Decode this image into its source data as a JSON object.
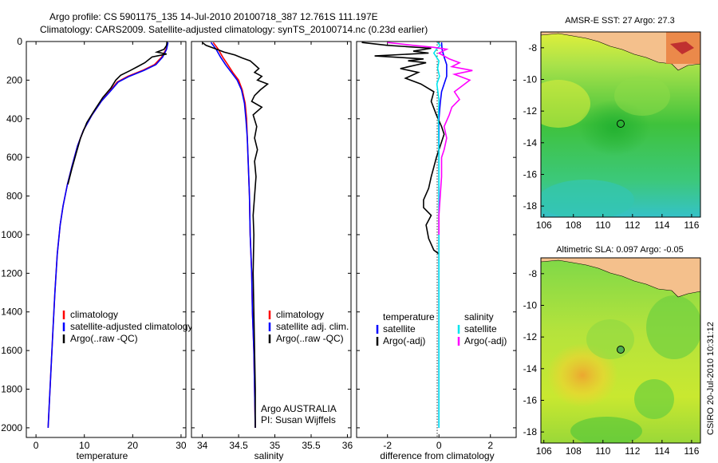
{
  "header": {
    "line1": "Argo profile: CS 5901175_135 14-Jul-2010 20100718_387 12.761S 111.197E",
    "line2": "Climatology: CARS2009. Satellite-adjusted climatology: synTS_20100714.nc (0.23d earlier)"
  },
  "footer": {
    "stamp": "CSIRO 20-Jul-2010 10:31:12"
  },
  "colors": {
    "climatology": "#ff0000",
    "satellite": "#0000ff",
    "argo": "#000000",
    "salinity_satellite": "#00e5ee",
    "salinity_argo": "#ff00ff",
    "land": "#f4c08c"
  },
  "chart_data": [
    {
      "type": "line",
      "name": "temperature-profile",
      "xlabel": "temperature",
      "ylabel": "",
      "xlim": [
        -2,
        31
      ],
      "ylim": [
        2050,
        0
      ],
      "xticks": [
        0,
        10,
        20,
        30
      ],
      "yticks": [
        0,
        200,
        400,
        600,
        800,
        1000,
        1200,
        1400,
        1600,
        1800,
        2000
      ],
      "legend": {
        "position": "lower-right",
        "entries": [
          "climatology",
          "satellite-adjusted climatology",
          "Argo(..raw -QC)"
        ]
      },
      "series": [
        {
          "name": "climatology",
          "color": "#ff0000",
          "points": [
            [
              27.2,
              5
            ],
            [
              26.9,
              40
            ],
            [
              26.0,
              80
            ],
            [
              24.5,
              120
            ],
            [
              22.0,
              150
            ],
            [
              19.0,
              180
            ],
            [
              16.8,
              210
            ],
            [
              15.2,
              260
            ],
            [
              13.5,
              310
            ],
            [
              11.6,
              380
            ],
            [
              9.8,
              460
            ],
            [
              8.6,
              540
            ],
            [
              7.5,
              640
            ],
            [
              6.5,
              740
            ],
            [
              5.6,
              850
            ],
            [
              5.0,
              950
            ],
            [
              4.4,
              1100
            ],
            [
              3.9,
              1300
            ],
            [
              3.5,
              1500
            ],
            [
              3.1,
              1700
            ],
            [
              2.7,
              1900
            ],
            [
              2.5,
              2000
            ]
          ]
        },
        {
          "name": "satellite-adjusted climatology",
          "color": "#0000ff",
          "points": [
            [
              27.3,
              5
            ],
            [
              27.0,
              40
            ],
            [
              26.2,
              80
            ],
            [
              24.8,
              120
            ],
            [
              22.3,
              150
            ],
            [
              19.3,
              180
            ],
            [
              17.0,
              210
            ],
            [
              15.3,
              260
            ],
            [
              13.5,
              310
            ],
            [
              11.6,
              380
            ],
            [
              9.8,
              460
            ],
            [
              8.6,
              540
            ],
            [
              7.5,
              640
            ],
            [
              6.5,
              740
            ],
            [
              5.6,
              850
            ],
            [
              5.0,
              950
            ],
            [
              4.4,
              1100
            ],
            [
              3.9,
              1300
            ],
            [
              3.5,
              1500
            ],
            [
              3.1,
              1700
            ],
            [
              2.7,
              1900
            ],
            [
              2.5,
              2000
            ]
          ]
        },
        {
          "name": "Argo(..raw -QC)",
          "color": "#000000",
          "points": [
            [
              27.1,
              0
            ],
            [
              27.0,
              20
            ],
            [
              26.5,
              40
            ],
            [
              25.0,
              55
            ],
            [
              27.0,
              65
            ],
            [
              24.0,
              80
            ],
            [
              22.5,
              110
            ],
            [
              21.0,
              130
            ],
            [
              19.5,
              150
            ],
            [
              17.5,
              175
            ],
            [
              16.5,
              200
            ],
            [
              15.5,
              240
            ],
            [
              13.8,
              290
            ],
            [
              12.0,
              360
            ],
            [
              10.5,
              420
            ],
            [
              9.2,
              500
            ],
            [
              8.3,
              580
            ],
            [
              7.4,
              660
            ],
            [
              6.6,
              740
            ]
          ]
        }
      ]
    },
    {
      "type": "line",
      "name": "salinity-profile",
      "xlabel": "salinity",
      "ylabel": "",
      "xlim": [
        33.85,
        36.05
      ],
      "ylim": [
        2050,
        0
      ],
      "xticks": [
        34,
        34.5,
        35,
        35.5,
        36
      ],
      "xtick_labels": [
        "34",
        "34.5",
        "35",
        "35.5",
        "36"
      ],
      "legend": {
        "position": "lower-right",
        "entries": [
          "climatology",
          "satellite adj. clim.",
          "Argo(..raw -QC)"
        ]
      },
      "annotations": [
        "Argo AUSTRALIA",
        "PI: Susan Wijffels"
      ],
      "series": [
        {
          "name": "climatology",
          "color": "#ff0000",
          "points": [
            [
              34.15,
              5
            ],
            [
              34.22,
              40
            ],
            [
              34.28,
              80
            ],
            [
              34.35,
              120
            ],
            [
              34.42,
              160
            ],
            [
              34.5,
              200
            ],
            [
              34.55,
              250
            ],
            [
              34.59,
              320
            ],
            [
              34.61,
              400
            ],
            [
              34.62,
              500
            ],
            [
              34.63,
              600
            ],
            [
              34.64,
              700
            ],
            [
              34.65,
              800
            ],
            [
              34.66,
              1000
            ],
            [
              34.68,
              1200
            ],
            [
              34.69,
              1400
            ],
            [
              34.71,
              1600
            ],
            [
              34.72,
              1800
            ],
            [
              34.73,
              2000
            ]
          ]
        },
        {
          "name": "satellite adj. clim.",
          "color": "#0000ff",
          "points": [
            [
              34.12,
              5
            ],
            [
              34.19,
              40
            ],
            [
              34.25,
              80
            ],
            [
              34.32,
              120
            ],
            [
              34.4,
              160
            ],
            [
              34.48,
              200
            ],
            [
              34.54,
              250
            ],
            [
              34.58,
              320
            ],
            [
              34.6,
              400
            ],
            [
              34.62,
              500
            ],
            [
              34.63,
              600
            ],
            [
              34.64,
              700
            ],
            [
              34.65,
              800
            ],
            [
              34.66,
              1000
            ],
            [
              34.68,
              1200
            ],
            [
              34.69,
              1400
            ],
            [
              34.71,
              1600
            ],
            [
              34.72,
              1800
            ],
            [
              34.73,
              2000
            ]
          ]
        },
        {
          "name": "Argo(..raw -QC)",
          "color": "#000000",
          "points": [
            [
              34.0,
              5
            ],
            [
              34.05,
              20
            ],
            [
              34.2,
              40
            ],
            [
              34.3,
              55
            ],
            [
              34.45,
              70
            ],
            [
              34.55,
              85
            ],
            [
              34.66,
              100
            ],
            [
              34.72,
              120
            ],
            [
              34.78,
              140
            ],
            [
              34.72,
              160
            ],
            [
              34.82,
              180
            ],
            [
              34.76,
              200
            ],
            [
              34.9,
              220
            ],
            [
              34.8,
              250
            ],
            [
              34.72,
              280
            ],
            [
              34.68,
              310
            ],
            [
              34.82,
              340
            ],
            [
              34.7,
              380
            ],
            [
              34.75,
              440
            ],
            [
              34.72,
              500
            ],
            [
              34.76,
              560
            ],
            [
              34.72,
              620
            ],
            [
              34.74,
              700
            ],
            [
              34.72,
              800
            ],
            [
              34.7,
              900
            ],
            [
              34.71,
              1000
            ],
            [
              34.7,
              1200
            ],
            [
              34.71,
              1400
            ],
            [
              34.72,
              1600
            ],
            [
              34.73,
              1800
            ],
            [
              34.73,
              2000
            ]
          ]
        }
      ]
    },
    {
      "type": "line",
      "name": "difference-profile",
      "xlabel": "difference from climatology",
      "ylabel": "",
      "xlim": [
        -3.2,
        3.0
      ],
      "ylim": [
        2050,
        0
      ],
      "xticks": [
        -2,
        0,
        2
      ],
      "legend": {
        "position": "lower",
        "entries": [
          "temperature",
          "satellite",
          "Argo(-adj)",
          "salinity",
          "satellite",
          "Argo(-adj)"
        ]
      },
      "series": [
        {
          "name": "temperature satellite",
          "color": "#0000ff",
          "points": [
            [
              0.1,
              5
            ],
            [
              0.12,
              40
            ],
            [
              0.2,
              80
            ],
            [
              0.3,
              120
            ],
            [
              0.3,
              150
            ],
            [
              0.3,
              180
            ],
            [
              0.2,
              220
            ],
            [
              0.1,
              260
            ],
            [
              0.05,
              320
            ],
            [
              0.0,
              400
            ],
            [
              0.0,
              600
            ],
            [
              0.0,
              1000
            ],
            [
              0.0,
              1400
            ],
            [
              0.0,
              2000
            ]
          ]
        },
        {
          "name": "temperature Argo(-adj)",
          "color": "#000000",
          "points": [
            [
              -3.0,
              5
            ],
            [
              -2.0,
              20
            ],
            [
              -0.3,
              35
            ],
            [
              -1.0,
              50
            ],
            [
              -0.4,
              60
            ],
            [
              -2.5,
              75
            ],
            [
              -0.6,
              90
            ],
            [
              -1.2,
              100
            ],
            [
              -0.5,
              110
            ],
            [
              -1.5,
              140
            ],
            [
              -0.8,
              160
            ],
            [
              -1.3,
              190
            ],
            [
              -0.7,
              220
            ],
            [
              -0.2,
              260
            ],
            [
              -0.3,
              310
            ],
            [
              -0.1,
              380
            ],
            [
              0.1,
              440
            ],
            [
              0.2,
              480
            ],
            [
              0.1,
              520
            ],
            [
              0.0,
              560
            ],
            [
              -0.1,
              600
            ],
            [
              -0.2,
              650
            ],
            [
              -0.3,
              700
            ],
            [
              -0.4,
              760
            ],
            [
              -0.6,
              820
            ],
            [
              -0.6,
              860
            ],
            [
              -0.3,
              900
            ],
            [
              -0.5,
              950
            ],
            [
              -0.4,
              1020
            ],
            [
              -0.2,
              1080
            ],
            [
              0.0,
              1100
            ]
          ]
        },
        {
          "name": "salinity satellite",
          "color": "#00e5ee",
          "points": [
            [
              -0.05,
              5
            ],
            [
              0.05,
              20
            ],
            [
              -0.1,
              40
            ],
            [
              -0.2,
              60
            ],
            [
              -0.1,
              80
            ],
            [
              0.0,
              100
            ],
            [
              -0.05,
              140
            ],
            [
              0.02,
              180
            ],
            [
              -0.08,
              220
            ],
            [
              -0.04,
              260
            ],
            [
              0.0,
              300
            ],
            [
              -0.02,
              400
            ],
            [
              0.0,
              600
            ],
            [
              0.0,
              800
            ],
            [
              0.0,
              1000
            ],
            [
              0.0,
              1400
            ],
            [
              0.0,
              1800
            ],
            [
              0.0,
              2000
            ]
          ]
        },
        {
          "name": "salinity Argo(-adj)",
          "color": "#ff00ff",
          "points": [
            [
              -2.0,
              5
            ],
            [
              -1.0,
              20
            ],
            [
              -0.2,
              30
            ],
            [
              0.3,
              40
            ],
            [
              0.0,
              60
            ],
            [
              0.4,
              90
            ],
            [
              0.8,
              110
            ],
            [
              0.5,
              130
            ],
            [
              1.3,
              150
            ],
            [
              0.6,
              170
            ],
            [
              1.2,
              200
            ],
            [
              0.9,
              230
            ],
            [
              0.6,
              260
            ],
            [
              0.8,
              300
            ],
            [
              0.5,
              340
            ],
            [
              0.4,
              380
            ],
            [
              0.2,
              440
            ],
            [
              0.3,
              500
            ],
            [
              0.2,
              560
            ],
            [
              0.1,
              600
            ],
            [
              0.1,
              700
            ],
            [
              0.05,
              800
            ],
            [
              0.0,
              900
            ],
            [
              0.0,
              1000
            ]
          ]
        }
      ]
    },
    {
      "type": "heatmap",
      "name": "sst-map",
      "title": "AMSR-E SST: 27 Argo: 27.3",
      "xlim": [
        105.8,
        116.6
      ],
      "ylim": [
        -18.7,
        -7.0
      ],
      "xticks": [
        106,
        108,
        110,
        112,
        114,
        116
      ],
      "yticks": [
        -8,
        -10,
        -12,
        -14,
        -16,
        -18
      ],
      "marker": {
        "lon": 111.2,
        "lat": -12.8
      }
    },
    {
      "type": "heatmap",
      "name": "sla-map",
      "title": "Altimetric SLA: 0.097 Argo: -0.05",
      "xlim": [
        105.8,
        116.6
      ],
      "ylim": [
        -18.7,
        -7.0
      ],
      "xticks": [
        106,
        108,
        110,
        112,
        114,
        116
      ],
      "yticks": [
        -8,
        -10,
        -12,
        -14,
        -16,
        -18
      ],
      "marker": {
        "lon": 111.2,
        "lat": -12.8
      }
    }
  ]
}
